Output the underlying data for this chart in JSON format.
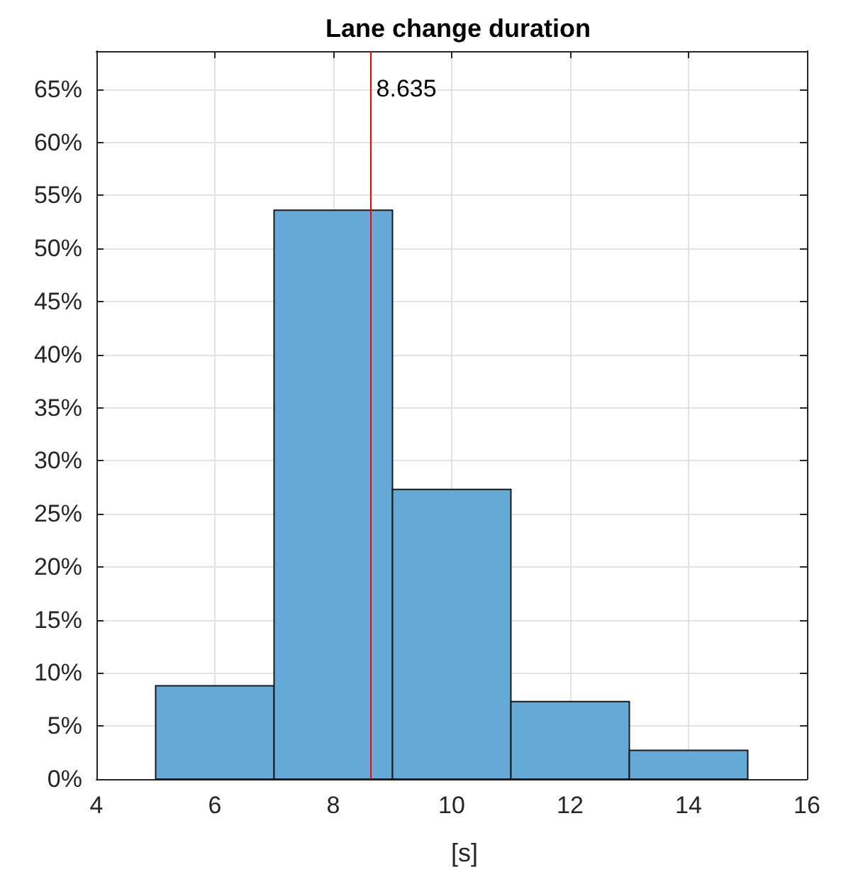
{
  "chart_data": {
    "type": "histogram",
    "title": "Lane change duration",
    "xlabel": "[s]",
    "bins": [
      5,
      7,
      9,
      11,
      13,
      15
    ],
    "values": [
      8.8,
      53.6,
      27.3,
      7.3,
      2.7
    ],
    "color": "#65a9d7",
    "xlim": [
      4,
      16
    ],
    "xticks": [
      4,
      6,
      8,
      10,
      12,
      14,
      16
    ],
    "ylim": [
      0,
      68.6
    ],
    "yticks": [
      {
        "value": 0,
        "label": "0%"
      },
      {
        "value": 5,
        "label": "5%"
      },
      {
        "value": 10,
        "label": "10%"
      },
      {
        "value": 15,
        "label": "15%"
      },
      {
        "value": 20,
        "label": "20%"
      },
      {
        "value": 25,
        "label": "25%"
      },
      {
        "value": 30,
        "label": "30%"
      },
      {
        "value": 35,
        "label": "35%"
      },
      {
        "value": 40,
        "label": "40%"
      },
      {
        "value": 45,
        "label": "45%"
      },
      {
        "value": 50,
        "label": "50%"
      },
      {
        "value": 55,
        "label": "55%"
      },
      {
        "value": 60,
        "label": "60%"
      },
      {
        "value": 65,
        "label": "65%"
      }
    ],
    "ref_lines": [
      {
        "axis": "x",
        "value": 8.635,
        "label": "8.635",
        "color": "#ff0000"
      }
    ],
    "grid": true
  }
}
